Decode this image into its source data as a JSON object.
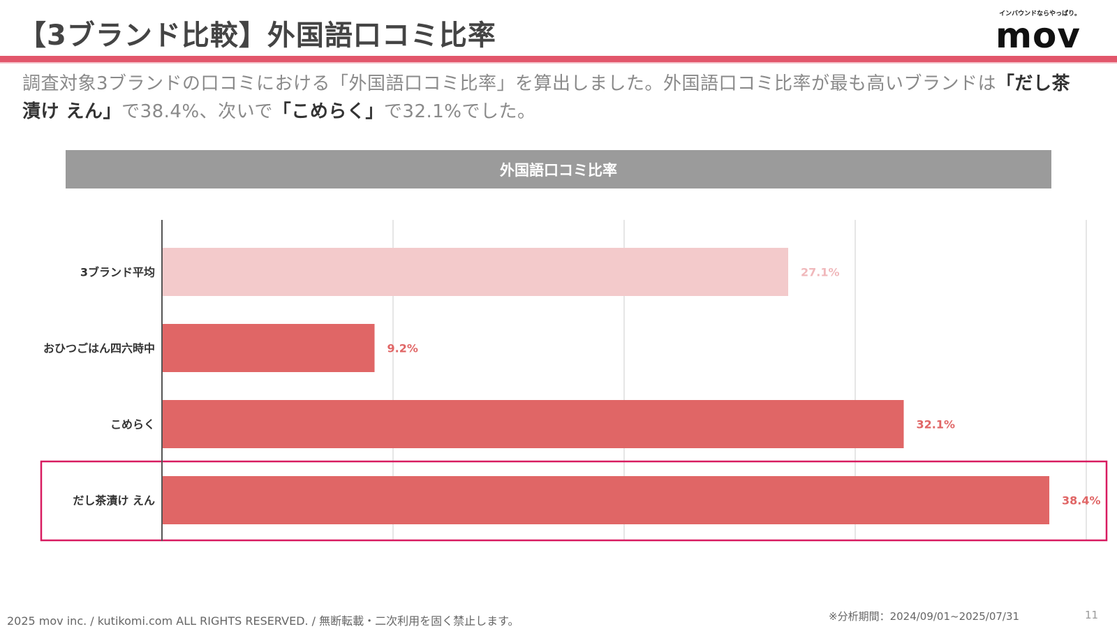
{
  "title": "【3ブランド比較】外国語口コミ比率",
  "logo": {
    "tagline": "インバウンドならやっぱり。",
    "mark": "mov"
  },
  "lead": {
    "p1": "調査対象3ブランドの口コミにおける「外国語口コミ比率」を算出しました。外国語口コミ比率が最も高いブランドは",
    "b1": "「だし茶漬け えん」",
    "p2": "で38.4%、次いで",
    "b2": "「こめらく」",
    "p3": "で32.1%でした。"
  },
  "footer": {
    "copyright": "2025 mov inc. / kutikomi.com ALL RIGHTS RESERVED. / 無断転載・二次利用を固く禁止します。",
    "period": "※分析期間：2024/09/01~2025/07/31",
    "page": "11"
  },
  "chart_data": {
    "type": "bar",
    "orientation": "horizontal",
    "title": "外国語口コミ比率",
    "categories": [
      "3ブランド平均",
      "おひつごはん四六時中",
      "こめらく",
      "だし茶漬け えん"
    ],
    "values": [
      27.1,
      9.2,
      32.1,
      38.4
    ],
    "value_labels": [
      "27.1%",
      "9.2%",
      "32.1%",
      "38.4%"
    ],
    "colors": [
      "#f3cacb",
      "#e06666",
      "#e06666",
      "#e06666"
    ],
    "label_colors": [
      "#f0b8bb",
      "#e06666",
      "#e06666",
      "#e06666"
    ],
    "highlight_category": "だし茶漬け えん",
    "highlight_color": "#d81b60",
    "xlim": [
      0,
      40
    ],
    "grid": true
  }
}
